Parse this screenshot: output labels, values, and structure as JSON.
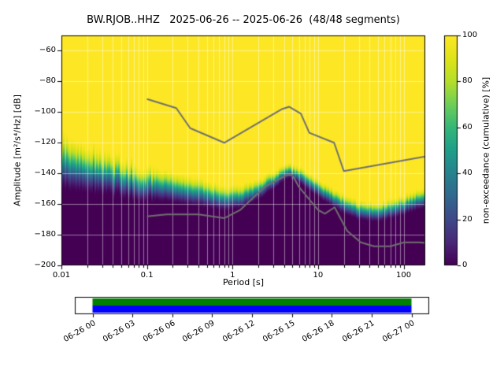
{
  "figure": {
    "title": "BW.RJOB..HHZ   2025-06-26 -- 2025-06-26  (48/48 segments)"
  },
  "axes": {
    "xlabel": "Period [s]",
    "ylabel": "Amplitude [m²/s⁴/Hz] [dB]",
    "x_tick_labels": [
      "0.01",
      "0.1",
      "1",
      "10",
      "100"
    ],
    "y_tick_labels": [
      "−200",
      "−180",
      "−160",
      "−140",
      "−120",
      "−100",
      "−80",
      "−60"
    ]
  },
  "colorbar": {
    "label": "non-exceedance (cumulative) [%]",
    "tick_labels": [
      "0",
      "20",
      "40",
      "60",
      "80",
      "100"
    ]
  },
  "timeline": {
    "tick_labels": [
      "06-26 00",
      "06-26 03",
      "06-26 06",
      "06-26 09",
      "06-26 12",
      "06-26 15",
      "06-26 18",
      "06-26 21",
      "06-27 00"
    ],
    "coverage_color": "#008000",
    "extent_color": "#0000ff"
  },
  "chart_data": {
    "type": "heatmap",
    "title": "BW.RJOB..HHZ   2025-06-26 -- 2025-06-26  (48/48 segments)",
    "station": "BW.RJOB..HHZ",
    "date_range": [
      "2025-06-26",
      "2025-06-26"
    ],
    "segments_used": 48,
    "segments_total": 48,
    "xlabel": "Period [s]",
    "ylabel": "Amplitude [m^2/s^4/Hz] [dB]",
    "x_scale": "log",
    "xlim": [
      0.01,
      179
    ],
    "ylim": [
      -200,
      -50
    ],
    "x_ticks": [
      0.01,
      0.1,
      1,
      10,
      100
    ],
    "y_ticks": [
      -200,
      -180,
      -160,
      -140,
      -120,
      -100,
      -80,
      -60
    ],
    "grid": true,
    "colorbar": {
      "label": "non-exceedance (cumulative) [%]",
      "range": [
        0,
        100
      ],
      "ticks": [
        0,
        20,
        40,
        60,
        80,
        100
      ],
      "cmap": "viridis"
    },
    "colormap_stops": [
      [
        0.0,
        "#440154"
      ],
      [
        0.1,
        "#482878"
      ],
      [
        0.2,
        "#3e4989"
      ],
      [
        0.3,
        "#31688e"
      ],
      [
        0.4,
        "#26828e"
      ],
      [
        0.5,
        "#1f9e89"
      ],
      [
        0.6,
        "#35b779"
      ],
      [
        0.7,
        "#6ece58"
      ],
      [
        0.8,
        "#b5de2b"
      ],
      [
        0.9,
        "#dfe318"
      ],
      [
        1.0,
        "#fde725"
      ]
    ],
    "distribution": {
      "periods": [
        0.01,
        0.02,
        0.035,
        0.06,
        0.1,
        0.2,
        0.35,
        0.6,
        0.8,
        1.2,
        2,
        3,
        4.5,
        6,
        8,
        12,
        20,
        30,
        50,
        80,
        120,
        179
      ],
      "db_top": [
        -113,
        -120,
        -126,
        -130,
        -134,
        -138,
        -141,
        -145,
        -147,
        -147,
        -143,
        -138,
        -133,
        -135,
        -139,
        -146,
        -153,
        -157,
        -158,
        -156,
        -152,
        -148
      ],
      "db_bottom": [
        -152,
        -153,
        -155,
        -157,
        -158,
        -160,
        -162,
        -164,
        -165,
        -164,
        -158,
        -151,
        -144,
        -147,
        -152,
        -159,
        -167,
        -171,
        -172,
        -170,
        -166,
        -163
      ]
    },
    "noise_models": {
      "nhnm": {
        "periods": [
          0.1,
          0.22,
          0.32,
          0.8,
          3.8,
          4.6,
          6.3,
          7.9,
          15.4,
          20,
          179
        ],
        "db": [
          -91.5,
          -97.4,
          -110.5,
          -120,
          -98,
          -96.5,
          -101,
          -113.5,
          -120,
          -138.5,
          -129
        ]
      },
      "nlnm": {
        "periods": [
          0.1,
          0.17,
          0.4,
          0.8,
          1.24,
          2.4,
          4.3,
          5,
          6,
          10,
          12,
          15.6,
          21.9,
          31.6,
          45,
          70,
          101,
          154,
          179
        ],
        "db": [
          -168,
          -166.7,
          -166.7,
          -169.2,
          -163.7,
          -148.6,
          -141.1,
          -141.1,
          -149,
          -163.8,
          -166.3,
          -162.1,
          -177.5,
          -185,
          -187.5,
          -187.5,
          -185,
          -185,
          -185.4
        ]
      }
    },
    "timeline_ticks": [
      "06-26 00",
      "06-26 03",
      "06-26 06",
      "06-26 09",
      "06-26 12",
      "06-26 15",
      "06-26 18",
      "06-26 21",
      "06-27 00"
    ]
  }
}
